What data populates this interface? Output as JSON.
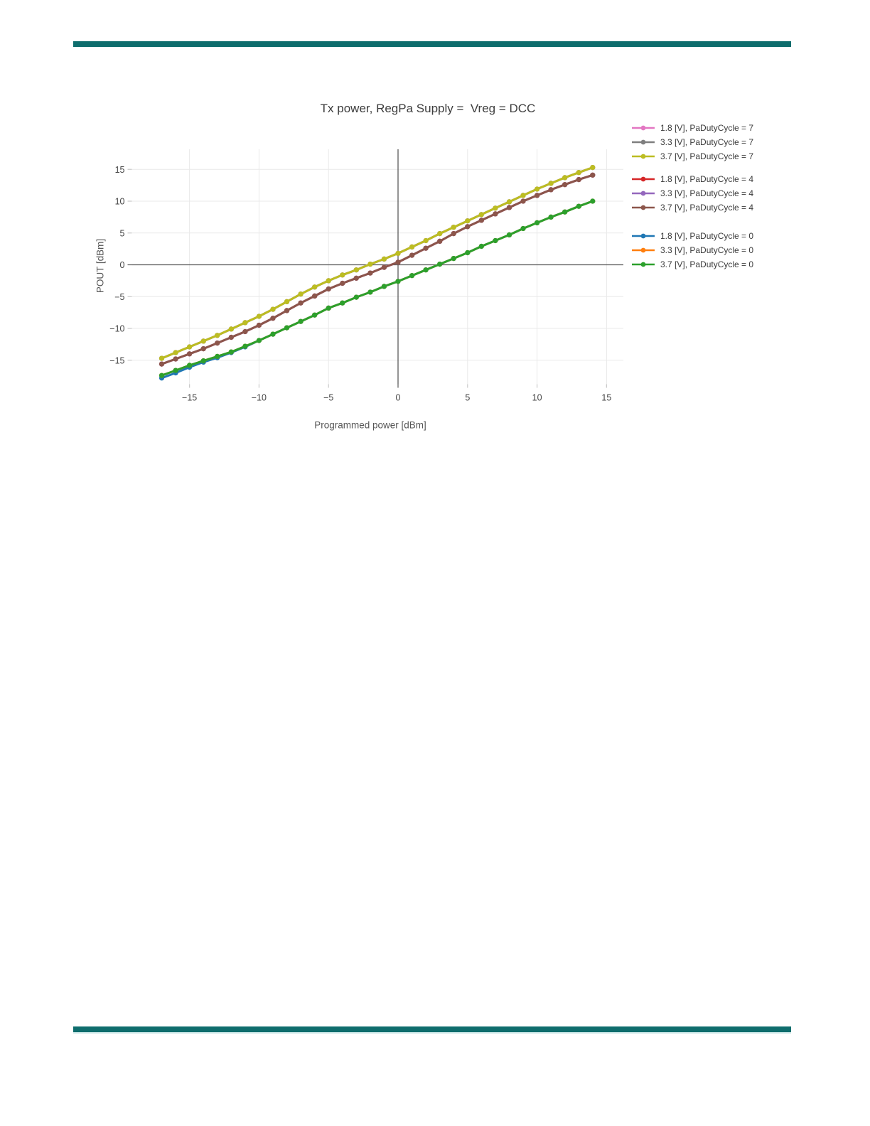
{
  "page": {
    "top_bar_color": "#0e6d6d",
    "bottom_bar_color": "#0e6d6d"
  },
  "chart_data": {
    "type": "line",
    "title": "Tx power, RegPa Supply =  Vreg = DCC",
    "xlabel": "Programmed power [dBm]",
    "ylabel": "POUT [dBm]",
    "xlim": [
      -19.2,
      16.2
    ],
    "ylim": [
      -18.8,
      18.2
    ],
    "xticks": [
      -15,
      -10,
      -5,
      0,
      5,
      10,
      15
    ],
    "yticks": [
      -15,
      -10,
      -5,
      0,
      5,
      10,
      15
    ],
    "grid": true,
    "zerolines": true,
    "legend_position": "right",
    "marker": "circle",
    "x": [
      -17,
      -16,
      -15,
      -14,
      -13,
      -12,
      -11,
      -10,
      -9,
      -8,
      -7,
      -6,
      -5,
      -4,
      -3,
      -2,
      -1,
      0,
      1,
      2,
      3,
      4,
      5,
      6,
      7,
      8,
      9,
      10,
      11,
      12,
      13,
      14
    ],
    "series": [
      {
        "name": "1.8 [V], PaDutyCycle = 7",
        "color": "#e377c2",
        "group": 0,
        "values": [
          -14.7,
          -13.8,
          -12.9,
          -12.0,
          -11.1,
          -10.1,
          -9.1,
          -8.1,
          -7.0,
          -5.8,
          -4.6,
          -3.5,
          -2.5,
          -1.6,
          -0.8,
          0.1,
          0.9,
          1.8,
          2.8,
          3.8,
          4.9,
          5.9,
          6.9,
          7.9,
          8.9,
          9.9,
          10.9,
          11.9,
          12.8,
          13.7,
          14.5,
          15.3
        ]
      },
      {
        "name": "3.3 [V], PaDutyCycle = 7",
        "color": "#7f7f7f",
        "group": 0,
        "values": [
          -14.7,
          -13.8,
          -12.9,
          -12.0,
          -11.1,
          -10.1,
          -9.1,
          -8.1,
          -7.0,
          -5.8,
          -4.6,
          -3.5,
          -2.5,
          -1.6,
          -0.8,
          0.1,
          0.9,
          1.8,
          2.8,
          3.8,
          4.9,
          5.9,
          6.9,
          7.9,
          8.9,
          9.9,
          10.9,
          11.9,
          12.8,
          13.7,
          14.5,
          15.3
        ]
      },
      {
        "name": "3.7 [V], PaDutyCycle = 7",
        "color": "#bcbd22",
        "group": 0,
        "values": [
          -14.7,
          -13.8,
          -12.9,
          -12.0,
          -11.1,
          -10.1,
          -9.1,
          -8.1,
          -7.0,
          -5.8,
          -4.6,
          -3.5,
          -2.5,
          -1.6,
          -0.8,
          0.1,
          0.9,
          1.8,
          2.8,
          3.8,
          4.9,
          5.9,
          6.9,
          7.9,
          8.9,
          9.9,
          10.9,
          11.9,
          12.8,
          13.7,
          14.5,
          15.3
        ]
      },
      {
        "name": "1.8 [V], PaDutyCycle = 4",
        "color": "#d62728",
        "group": 1,
        "values": [
          -15.6,
          -14.8,
          -14.0,
          -13.2,
          -12.3,
          -11.4,
          -10.5,
          -9.5,
          -8.4,
          -7.2,
          -6.0,
          -4.9,
          -3.8,
          -2.9,
          -2.1,
          -1.3,
          -0.4,
          0.4,
          1.5,
          2.6,
          3.7,
          4.9,
          6.0,
          7.0,
          8.0,
          9.0,
          10.0,
          10.9,
          11.8,
          12.6,
          13.4,
          14.1
        ]
      },
      {
        "name": "3.3 [V], PaDutyCycle = 4",
        "color": "#9467bd",
        "group": 1,
        "values": [
          -15.6,
          -14.8,
          -14.0,
          -13.2,
          -12.3,
          -11.4,
          -10.5,
          -9.5,
          -8.4,
          -7.2,
          -6.0,
          -4.9,
          -3.8,
          -2.9,
          -2.1,
          -1.3,
          -0.4,
          0.4,
          1.5,
          2.6,
          3.7,
          4.9,
          6.0,
          7.0,
          8.0,
          9.0,
          10.0,
          10.9,
          11.8,
          12.6,
          13.4,
          14.1
        ]
      },
      {
        "name": "3.7 [V], PaDutyCycle = 4",
        "color": "#8c564b",
        "group": 1,
        "values": [
          -15.6,
          -14.8,
          -14.0,
          -13.2,
          -12.3,
          -11.4,
          -10.5,
          -9.5,
          -8.4,
          -7.2,
          -6.0,
          -4.9,
          -3.8,
          -2.9,
          -2.1,
          -1.3,
          -0.4,
          0.4,
          1.5,
          2.6,
          3.7,
          4.9,
          6.0,
          7.0,
          8.0,
          9.0,
          10.0,
          10.9,
          11.8,
          12.6,
          13.4,
          14.1
        ]
      },
      {
        "name": "1.8 [V], PaDutyCycle = 0",
        "color": "#1f77b4",
        "group": 2,
        "values": [
          -17.8,
          -17.0,
          -16.1,
          -15.3,
          -14.6,
          -13.8,
          -12.9,
          -11.9,
          -10.9,
          -9.9,
          -8.9,
          -7.9,
          -6.8,
          -6.0,
          -5.1,
          -4.3,
          -3.4,
          -2.6,
          -1.7,
          -0.8,
          0.1,
          1.0,
          1.9,
          2.9,
          3.8,
          4.7,
          5.7,
          6.6,
          7.5,
          8.3,
          9.2,
          10.0
        ]
      },
      {
        "name": "3.3 [V], PaDutyCycle = 0",
        "color": "#ff7f0e",
        "group": 2,
        "values": [
          -17.4,
          -16.6,
          -15.8,
          -15.1,
          -14.4,
          -13.7,
          -12.8,
          -11.9,
          -10.9,
          -9.9,
          -8.9,
          -7.9,
          -6.8,
          -6.0,
          -5.1,
          -4.3,
          -3.4,
          -2.6,
          -1.7,
          -0.8,
          0.1,
          1.0,
          1.9,
          2.9,
          3.8,
          4.7,
          5.7,
          6.6,
          7.5,
          8.3,
          9.2,
          10.0
        ]
      },
      {
        "name": "3.7 [V], PaDutyCycle = 0",
        "color": "#2ca02c",
        "group": 2,
        "values": [
          -17.4,
          -16.6,
          -15.8,
          -15.1,
          -14.4,
          -13.7,
          -12.8,
          -11.9,
          -10.9,
          -9.9,
          -8.9,
          -7.9,
          -6.8,
          -6.0,
          -5.1,
          -4.3,
          -3.4,
          -2.6,
          -1.7,
          -0.8,
          0.1,
          1.0,
          1.9,
          2.9,
          3.8,
          4.7,
          5.7,
          6.6,
          7.5,
          8.3,
          9.2,
          10.0
        ]
      }
    ]
  }
}
